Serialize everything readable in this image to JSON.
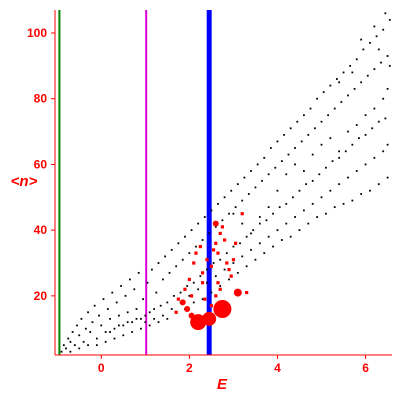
{
  "chart_data": {
    "type": "scatter",
    "title": "",
    "xlabel": "E",
    "ylabel": "<n>",
    "xlim": [
      -1.05,
      6.6
    ],
    "ylim": [
      2,
      107
    ],
    "x_ticks": [
      0,
      2,
      4,
      6
    ],
    "y_ticks": [
      20,
      40,
      60,
      80,
      100
    ],
    "grid": false,
    "colors": {
      "axis": "#ff0000",
      "points": "#000000",
      "highlight": "#ff0000",
      "line_green": "#008000",
      "line_magenta": "#dd00dd",
      "line_blue": "#0000ff"
    },
    "vertical_lines": [
      {
        "x": -0.95,
        "color": "green"
      },
      {
        "x": 1.02,
        "color": "magenta"
      },
      {
        "x": 2.45,
        "color": "blue"
      }
    ],
    "series": [
      {
        "color": "black",
        "description_points": "dense band of small dots",
        "points": [
          [
            -0.9,
            3
          ],
          [
            -0.85,
            5
          ],
          [
            -0.8,
            4
          ],
          [
            -0.75,
            7
          ],
          [
            -0.7,
            6
          ],
          [
            -0.65,
            9
          ],
          [
            -0.6,
            5
          ],
          [
            -0.55,
            11
          ],
          [
            -0.5,
            8
          ],
          [
            -0.45,
            13
          ],
          [
            -0.4,
            6
          ],
          [
            -0.35,
            10
          ],
          [
            -0.3,
            15
          ],
          [
            -0.25,
            9
          ],
          [
            -0.2,
            12
          ],
          [
            -0.15,
            17
          ],
          [
            -0.1,
            7
          ],
          [
            -0.05,
            14
          ],
          [
            0.0,
            11
          ],
          [
            0.05,
            19
          ],
          [
            0.1,
            9
          ],
          [
            0.15,
            16
          ],
          [
            0.2,
            13
          ],
          [
            0.25,
            21
          ],
          [
            0.3,
            10
          ],
          [
            0.35,
            18
          ],
          [
            0.4,
            14
          ],
          [
            0.45,
            23
          ],
          [
            0.5,
            11
          ],
          [
            0.55,
            20
          ],
          [
            0.6,
            15
          ],
          [
            0.65,
            25
          ],
          [
            0.7,
            12
          ],
          [
            0.75,
            22
          ],
          [
            0.8,
            16
          ],
          [
            0.85,
            27
          ],
          [
            0.9,
            13
          ],
          [
            0.95,
            19
          ],
          [
            1.0,
            14
          ],
          [
            1.05,
            24
          ],
          [
            1.1,
            15
          ],
          [
            1.15,
            28
          ],
          [
            1.2,
            16
          ],
          [
            1.25,
            21
          ],
          [
            1.3,
            30
          ],
          [
            1.35,
            17
          ],
          [
            1.4,
            25
          ],
          [
            1.45,
            32
          ],
          [
            1.5,
            18
          ],
          [
            1.55,
            27
          ],
          [
            1.6,
            34
          ],
          [
            1.65,
            20
          ],
          [
            1.7,
            29
          ],
          [
            1.75,
            36
          ],
          [
            1.8,
            21
          ],
          [
            1.85,
            31
          ],
          [
            1.9,
            38
          ],
          [
            1.95,
            23
          ],
          [
            2.0,
            33
          ],
          [
            2.05,
            40
          ],
          [
            2.1,
            24
          ],
          [
            2.15,
            35
          ],
          [
            2.2,
            42
          ],
          [
            2.25,
            26
          ],
          [
            2.3,
            37
          ],
          [
            2.35,
            44
          ],
          [
            2.4,
            28
          ],
          [
            2.45,
            39
          ],
          [
            2.5,
            46
          ],
          [
            2.55,
            30
          ],
          [
            2.6,
            41
          ],
          [
            2.65,
            48
          ],
          [
            2.7,
            31
          ],
          [
            2.75,
            43
          ],
          [
            2.8,
            50
          ],
          [
            2.85,
            33
          ],
          [
            2.9,
            45
          ],
          [
            2.95,
            52
          ],
          [
            3.0,
            35
          ],
          [
            3.05,
            47
          ],
          [
            3.1,
            54
          ],
          [
            3.15,
            36
          ],
          [
            3.2,
            49
          ],
          [
            3.25,
            56
          ],
          [
            3.3,
            38
          ],
          [
            3.35,
            51
          ],
          [
            3.4,
            58
          ],
          [
            3.45,
            40
          ],
          [
            3.5,
            53
          ],
          [
            3.55,
            60
          ],
          [
            3.6,
            42
          ],
          [
            3.65,
            55
          ],
          [
            3.7,
            62
          ],
          [
            3.75,
            43
          ],
          [
            3.8,
            57
          ],
          [
            3.85,
            65
          ],
          [
            3.9,
            45
          ],
          [
            3.95,
            59
          ],
          [
            4.0,
            67
          ],
          [
            4.05,
            47
          ],
          [
            4.1,
            61
          ],
          [
            4.15,
            69
          ],
          [
            4.2,
            48
          ],
          [
            4.25,
            63
          ],
          [
            4.3,
            71
          ],
          [
            4.35,
            50
          ],
          [
            4.4,
            65
          ],
          [
            4.45,
            73
          ],
          [
            4.5,
            52
          ],
          [
            4.55,
            67
          ],
          [
            4.6,
            75
          ],
          [
            4.65,
            54
          ],
          [
            4.7,
            69
          ],
          [
            4.75,
            77
          ],
          [
            4.8,
            55
          ],
          [
            4.85,
            71
          ],
          [
            4.9,
            80
          ],
          [
            4.95,
            57
          ],
          [
            5.0,
            73
          ],
          [
            5.05,
            82
          ],
          [
            5.1,
            59
          ],
          [
            5.15,
            75
          ],
          [
            5.2,
            84
          ],
          [
            5.25,
            61
          ],
          [
            5.3,
            77
          ],
          [
            5.35,
            86
          ],
          [
            5.4,
            62
          ],
          [
            5.45,
            79
          ],
          [
            5.5,
            88
          ],
          [
            5.55,
            64
          ],
          [
            5.6,
            81
          ],
          [
            5.65,
            90
          ],
          [
            5.7,
            66
          ],
          [
            5.75,
            83
          ],
          [
            5.8,
            92
          ],
          [
            5.85,
            68
          ],
          [
            5.9,
            85
          ],
          [
            5.95,
            95
          ],
          [
            6.0,
            69
          ],
          [
            6.05,
            87
          ],
          [
            6.1,
            97
          ],
          [
            6.15,
            71
          ],
          [
            6.2,
            89
          ],
          [
            6.25,
            99
          ],
          [
            6.3,
            73
          ],
          [
            6.35,
            91
          ],
          [
            6.4,
            101
          ],
          [
            6.45,
            74
          ],
          [
            6.5,
            93
          ],
          [
            6.55,
            104
          ],
          [
            -0.7,
            3
          ],
          [
            -0.5,
            4
          ],
          [
            -0.3,
            5
          ],
          [
            -0.1,
            5
          ],
          [
            0.1,
            6
          ],
          [
            0.3,
            7
          ],
          [
            0.5,
            8
          ],
          [
            0.7,
            9
          ],
          [
            0.9,
            10
          ],
          [
            1.1,
            11
          ],
          [
            1.3,
            12
          ],
          [
            1.5,
            13
          ],
          [
            1.7,
            15
          ],
          [
            1.9,
            16
          ],
          [
            2.1,
            18
          ],
          [
            2.3,
            19
          ],
          [
            2.5,
            21
          ],
          [
            2.7,
            23
          ],
          [
            2.9,
            25
          ],
          [
            3.1,
            27
          ],
          [
            3.3,
            29
          ],
          [
            3.5,
            31
          ],
          [
            3.7,
            33
          ],
          [
            3.9,
            35
          ],
          [
            4.1,
            37
          ],
          [
            4.3,
            38
          ],
          [
            4.5,
            40
          ],
          [
            4.7,
            42
          ],
          [
            4.9,
            44
          ],
          [
            5.1,
            45
          ],
          [
            5.3,
            47
          ],
          [
            5.5,
            48
          ],
          [
            5.7,
            49
          ],
          [
            5.9,
            51
          ],
          [
            6.1,
            52
          ],
          [
            6.3,
            54
          ],
          [
            6.5,
            56
          ],
          [
            0.2,
            9
          ],
          [
            0.4,
            11
          ],
          [
            0.6,
            12
          ],
          [
            0.8,
            13
          ],
          [
            1.0,
            12
          ],
          [
            1.2,
            13
          ],
          [
            1.4,
            14
          ],
          [
            1.6,
            16
          ],
          [
            1.8,
            18
          ],
          [
            2.0,
            20
          ],
          [
            2.2,
            22
          ],
          [
            2.4,
            24
          ],
          [
            2.6,
            26
          ],
          [
            2.8,
            28
          ],
          [
            3.0,
            30
          ],
          [
            3.2,
            32
          ],
          [
            3.4,
            34
          ],
          [
            3.6,
            36
          ],
          [
            3.8,
            38
          ],
          [
            4.0,
            40
          ],
          [
            4.2,
            42
          ],
          [
            4.4,
            44
          ],
          [
            4.6,
            46
          ],
          [
            4.8,
            48
          ],
          [
            5.0,
            50
          ],
          [
            5.2,
            52
          ],
          [
            5.4,
            54
          ],
          [
            5.6,
            56
          ],
          [
            5.8,
            58
          ],
          [
            6.0,
            60
          ],
          [
            6.2,
            62
          ],
          [
            6.4,
            64
          ],
          [
            6.5,
            66
          ],
          [
            3.0,
            45
          ],
          [
            3.2,
            42
          ],
          [
            3.4,
            39
          ],
          [
            3.6,
            44
          ],
          [
            3.8,
            47
          ],
          [
            4.0,
            52
          ],
          [
            4.2,
            57
          ],
          [
            4.4,
            60
          ],
          [
            4.6,
            58
          ],
          [
            4.8,
            63
          ],
          [
            5.0,
            66
          ],
          [
            5.2,
            68
          ],
          [
            5.4,
            64
          ],
          [
            5.6,
            70
          ],
          [
            5.8,
            72
          ],
          [
            6.0,
            75
          ],
          [
            6.2,
            77
          ],
          [
            6.4,
            80
          ],
          [
            6.5,
            83
          ],
          [
            5.9,
            98
          ],
          [
            6.2,
            102
          ],
          [
            6.45,
            106
          ],
          [
            6.3,
            95
          ],
          [
            6.55,
            90
          ],
          [
            5.7,
            88
          ],
          [
            5.4,
            85
          ]
        ]
      },
      {
        "color": "red",
        "description_points": "highlighted red markers, size shows weight",
        "points": [
          [
            1.75,
            19,
            2
          ],
          [
            1.9,
            22,
            2
          ],
          [
            2.0,
            25,
            2
          ],
          [
            2.1,
            30,
            2
          ],
          [
            2.15,
            33,
            2
          ],
          [
            2.25,
            35,
            2
          ],
          [
            2.3,
            27,
            2
          ],
          [
            2.4,
            31,
            2
          ],
          [
            2.5,
            29,
            2
          ],
          [
            2.55,
            34,
            2
          ],
          [
            2.6,
            36,
            2
          ],
          [
            2.65,
            33,
            2
          ],
          [
            2.7,
            39,
            2
          ],
          [
            2.75,
            41,
            2
          ],
          [
            2.8,
            37,
            2
          ],
          [
            2.85,
            30,
            2
          ],
          [
            2.9,
            28,
            2
          ],
          [
            2.95,
            26,
            2
          ],
          [
            3.0,
            31,
            2
          ],
          [
            3.05,
            36,
            2
          ],
          [
            2.6,
            42,
            3
          ],
          [
            2.7,
            22,
            2
          ],
          [
            2.8,
            18,
            2
          ],
          [
            2.9,
            16,
            2
          ],
          [
            1.85,
            18,
            3
          ],
          [
            1.95,
            16,
            3
          ],
          [
            2.05,
            14,
            3
          ],
          [
            2.2,
            12,
            8
          ],
          [
            2.45,
            13,
            7
          ],
          [
            2.75,
            16,
            9
          ],
          [
            3.1,
            21,
            4
          ],
          [
            3.3,
            21,
            2
          ],
          [
            1.7,
            15,
            2
          ],
          [
            2.35,
            19,
            2
          ],
          [
            2.5,
            17,
            2
          ],
          [
            2.6,
            20,
            2
          ],
          [
            2.65,
            24,
            2
          ],
          [
            2.3,
            24,
            2
          ],
          [
            2.05,
            20,
            2
          ],
          [
            3.2,
            45,
            2
          ]
        ]
      }
    ]
  }
}
